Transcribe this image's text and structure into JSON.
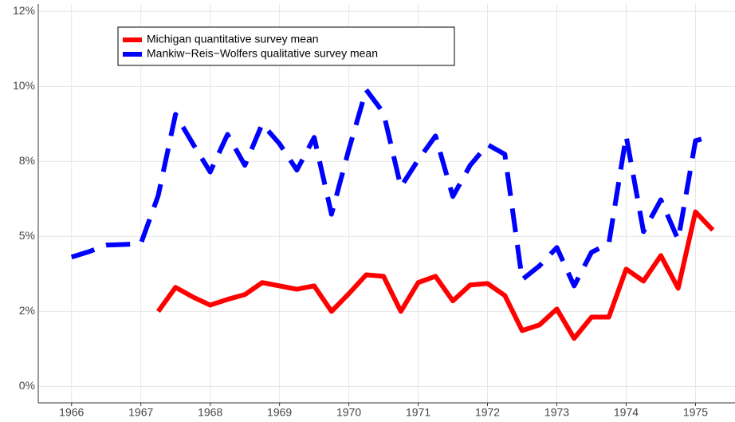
{
  "chart_data": {
    "type": "line",
    "x": [
      1966,
      1966.25,
      1966.5,
      1966.75,
      1967,
      1967.25,
      1967.5,
      1967.75,
      1968,
      1968.25,
      1968.5,
      1968.75,
      1969,
      1969.25,
      1969.5,
      1969.75,
      1970,
      1970.25,
      1970.5,
      1970.75,
      1971,
      1971.25,
      1971.5,
      1971.75,
      1972,
      1972.25,
      1972.5,
      1972.75,
      1973,
      1973.25,
      1973.5,
      1973.75,
      1974,
      1974.25,
      1974.5,
      1974.75,
      1975,
      1975.25
    ],
    "series": [
      {
        "name": "Michigan quantitative survey mean",
        "color": "#ff0000",
        "dashed": false,
        "values": [
          null,
          null,
          null,
          null,
          null,
          2.5,
          3.3,
          2.98,
          2.71,
          2.9,
          3.06,
          3.46,
          3.35,
          3.24,
          3.35,
          2.5,
          3.09,
          3.72,
          3.67,
          2.5,
          3.46,
          3.67,
          2.85,
          3.38,
          3.43,
          3.03,
          1.86,
          2.05,
          2.58,
          1.6,
          2.31,
          2.31,
          3.91,
          3.51,
          4.36,
          3.27,
          5.82,
          5.21
        ]
      },
      {
        "name": "Mankiw−Reis−Wolfers qualitative survey mean",
        "color": "#0000ff",
        "dashed": true,
        "values": [
          4.31,
          4.49,
          4.71,
          4.73,
          4.76,
          6.36,
          9.07,
          8.09,
          7.15,
          8.4,
          7.37,
          8.75,
          8.09,
          7.21,
          8.3,
          5.74,
          7.9,
          9.89,
          9.12,
          6.65,
          7.55,
          8.35,
          6.33,
          7.37,
          8.06,
          7.74,
          3.56,
          4.02,
          4.63,
          3.35,
          4.47,
          4.76,
          8.35,
          5.16,
          6.22,
          4.89,
          8.19,
          8.35
        ]
      }
    ],
    "xlim": [
      1965.52,
      1975.57
    ],
    "xticks": [
      1966,
      1967,
      1968,
      1969,
      1970,
      1971,
      1972,
      1973,
      1974,
      1975
    ],
    "ylim": [
      -0.55,
      12.75
    ],
    "yticks": [
      {
        "value": 0,
        "label": "0%"
      },
      {
        "value": 2.5,
        "label": "2%"
      },
      {
        "value": 5,
        "label": "5%"
      },
      {
        "value": 7.5,
        "label": "8%"
      },
      {
        "value": 10,
        "label": "10%"
      },
      {
        "value": 12.5,
        "label": "12%"
      }
    ],
    "grid": true
  }
}
